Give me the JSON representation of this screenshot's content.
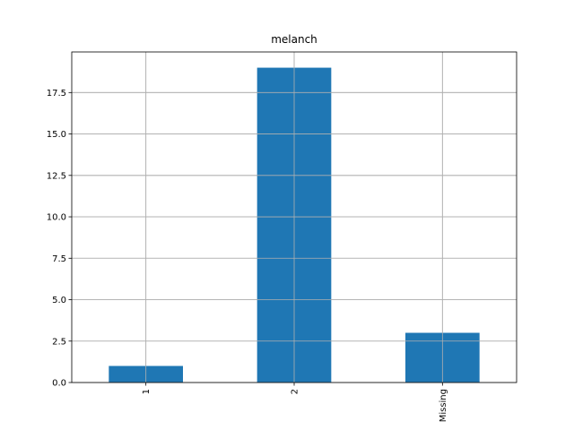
{
  "chart_data": {
    "type": "bar",
    "title": "melanch",
    "xlabel": "",
    "ylabel": "",
    "categories": [
      "1",
      "2",
      "Missing"
    ],
    "values": [
      1,
      19,
      3
    ],
    "ylim": [
      0,
      19.95
    ],
    "yticks": [
      0.0,
      2.5,
      5.0,
      7.5,
      10.0,
      12.5,
      15.0,
      17.5
    ],
    "ytick_labels": [
      "0.0",
      "2.5",
      "5.0",
      "7.5",
      "10.0",
      "12.5",
      "15.0",
      "17.5"
    ],
    "grid": true,
    "legend": "none",
    "colors": {
      "bar": "#1f77b4",
      "grid": "#b0b0b0",
      "axis": "#000000",
      "background": "#ffffff"
    }
  }
}
